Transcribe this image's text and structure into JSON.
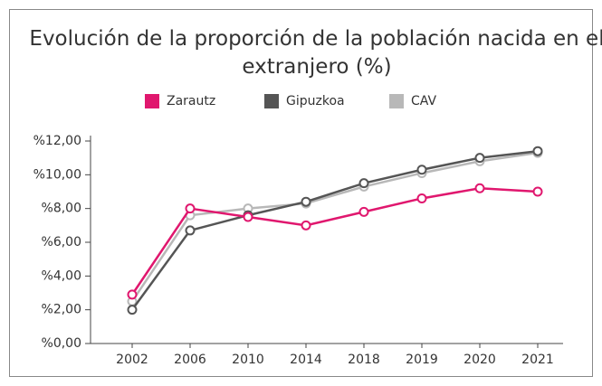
{
  "chart_data": {
    "type": "line",
    "title": "Evolución de la proporción de la población nacida en el extranjero (%)",
    "categories": [
      "2002",
      "2006",
      "2010",
      "2014",
      "2018",
      "2019",
      "2020",
      "2021"
    ],
    "series": [
      {
        "name": "Zarautz",
        "color": "#e0176e",
        "values": [
          2.9,
          8.0,
          7.5,
          7.0,
          7.8,
          8.6,
          9.2,
          9.0
        ]
      },
      {
        "name": "Gipuzkoa",
        "color": "#555555",
        "values": [
          2.0,
          6.7,
          7.6,
          8.4,
          9.5,
          10.3,
          11.0,
          11.4
        ]
      },
      {
        "name": "CAV",
        "color": "#b8b8b8",
        "values": [
          2.5,
          7.6,
          8.0,
          8.3,
          9.3,
          10.1,
          10.8,
          11.3
        ]
      }
    ],
    "ylim": [
      0,
      12
    ],
    "yticks": [
      {
        "value": 0,
        "label": "%0,00"
      },
      {
        "value": 2,
        "label": "%2,00"
      },
      {
        "value": 4,
        "label": "%4,00"
      },
      {
        "value": 6,
        "label": "%6,00"
      },
      {
        "value": 8,
        "label": "%8,00"
      },
      {
        "value": 10,
        "label": "%10,00"
      },
      {
        "value": 12,
        "label": "%12,00"
      }
    ],
    "legend": "top"
  }
}
